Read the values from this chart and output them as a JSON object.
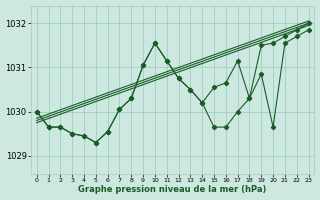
{
  "bg_color": "#cce8e0",
  "grid_color": "#9ecfbf",
  "line_color": "#1a5c28",
  "title": "Graphe pression niveau de la mer (hPa)",
  "ylabel_labels": [
    1029,
    1030,
    1031,
    1032
  ],
  "xlim": [
    -0.5,
    23.5
  ],
  "ylim": [
    1028.6,
    1032.4
  ],
  "line1_x": [
    0,
    1,
    2,
    3,
    4,
    5,
    6,
    7,
    8,
    9,
    10,
    11,
    12,
    13,
    14,
    15,
    16,
    17,
    18,
    19,
    20,
    21,
    22,
    23
  ],
  "line1_y": [
    1030.0,
    1029.65,
    1029.65,
    1029.5,
    1029.45,
    1029.3,
    1029.55,
    1030.05,
    1030.3,
    1031.05,
    1031.55,
    1031.15,
    1030.75,
    1030.5,
    1030.2,
    1030.55,
    1030.65,
    1031.15,
    1030.3,
    1031.5,
    1031.55,
    1031.7,
    1031.85,
    1032.0
  ],
  "line2_x": [
    0,
    1,
    2,
    3,
    4,
    5,
    6,
    7,
    8,
    9,
    10,
    11,
    12,
    13,
    14,
    15,
    16,
    17,
    18,
    19,
    20,
    21,
    22,
    23
  ],
  "line2_y": [
    1030.0,
    1029.65,
    1029.65,
    1029.5,
    1029.45,
    1029.3,
    1029.55,
    1030.05,
    1030.3,
    1031.05,
    1031.55,
    1031.15,
    1030.75,
    1030.5,
    1030.2,
    1029.65,
    1029.65,
    1030.0,
    1030.3,
    1030.85,
    1029.65,
    1031.55,
    1031.7,
    1031.85
  ],
  "trend1_x": [
    0,
    23
  ],
  "trend1_y": [
    1029.75,
    1031.95
  ],
  "trend2_x": [
    0,
    23
  ],
  "trend2_y": [
    1029.8,
    1032.0
  ],
  "trend3_x": [
    0,
    23
  ],
  "trend3_y": [
    1029.85,
    1032.05
  ],
  "xtick_labels": [
    "0",
    "1",
    "2",
    "3",
    "4",
    "5",
    "6",
    "7",
    "8",
    "9",
    "10",
    "11",
    "12",
    "13",
    "14",
    "15",
    "16",
    "17",
    "18",
    "19",
    "20",
    "21",
    "22",
    "23"
  ]
}
